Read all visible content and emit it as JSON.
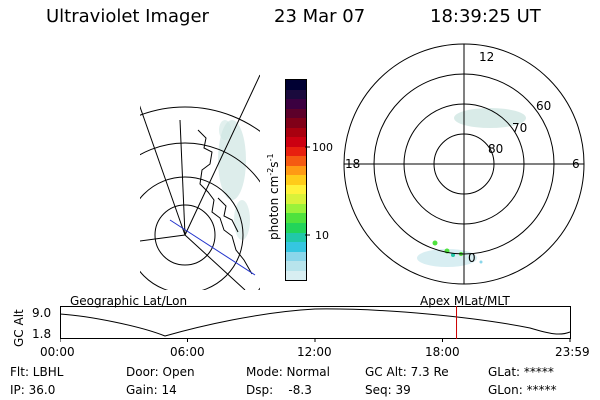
{
  "header": {
    "instrument": "Ultraviolet Imager",
    "date": "23 Mar 07",
    "time": "18:39:25 UT"
  },
  "colorbar": {
    "unit": "photon cm",
    "unit_exp1": "-2",
    "unit_mid": "s",
    "unit_exp2": "-1",
    "tick_high": "100",
    "tick_low": "10",
    "colors": [
      "#000033",
      "#1a0a3d",
      "#3b0040",
      "#5c002a",
      "#800018",
      "#a8000f",
      "#cc0011",
      "#e8200f",
      "#f55a12",
      "#ff9a14",
      "#ffcc1a",
      "#fff23a",
      "#d9f23a",
      "#9af23a",
      "#4fe23d",
      "#22d45a",
      "#21c8a8",
      "#35c6e0",
      "#8ad6ea",
      "#b8e4ec",
      "#d8eef2"
    ]
  },
  "polar_plot": {
    "mlt_labels": {
      "top": "12",
      "left": "18",
      "right": "6",
      "bottom": "0"
    },
    "lat_labels": [
      "60",
      "70",
      "80"
    ]
  },
  "timeline": {
    "left_title": "Geographic Lat/Lon",
    "right_title": "Apex MLat/MLT",
    "axis_label": "GC Alt",
    "y_max": "9.0",
    "y_min": "1.8",
    "x_ticks": [
      "00:00",
      "06:00",
      "12:00",
      "18:00",
      "23:59"
    ],
    "marker_time_hours": 18.66,
    "marker_color": "#cc0000"
  },
  "status": {
    "filter": "Flt: LBHL",
    "ip": "IP: 36.0",
    "door": "Door: Open",
    "gain": "Gain: 14",
    "mode": "Mode: Normal",
    "dsp": "Dsp:    -8.3",
    "gc_alt": "GC Alt: 7.3 Re",
    "seq": "Seq: 39",
    "glat": "GLat: *****",
    "glon": "GLon: *****"
  }
}
